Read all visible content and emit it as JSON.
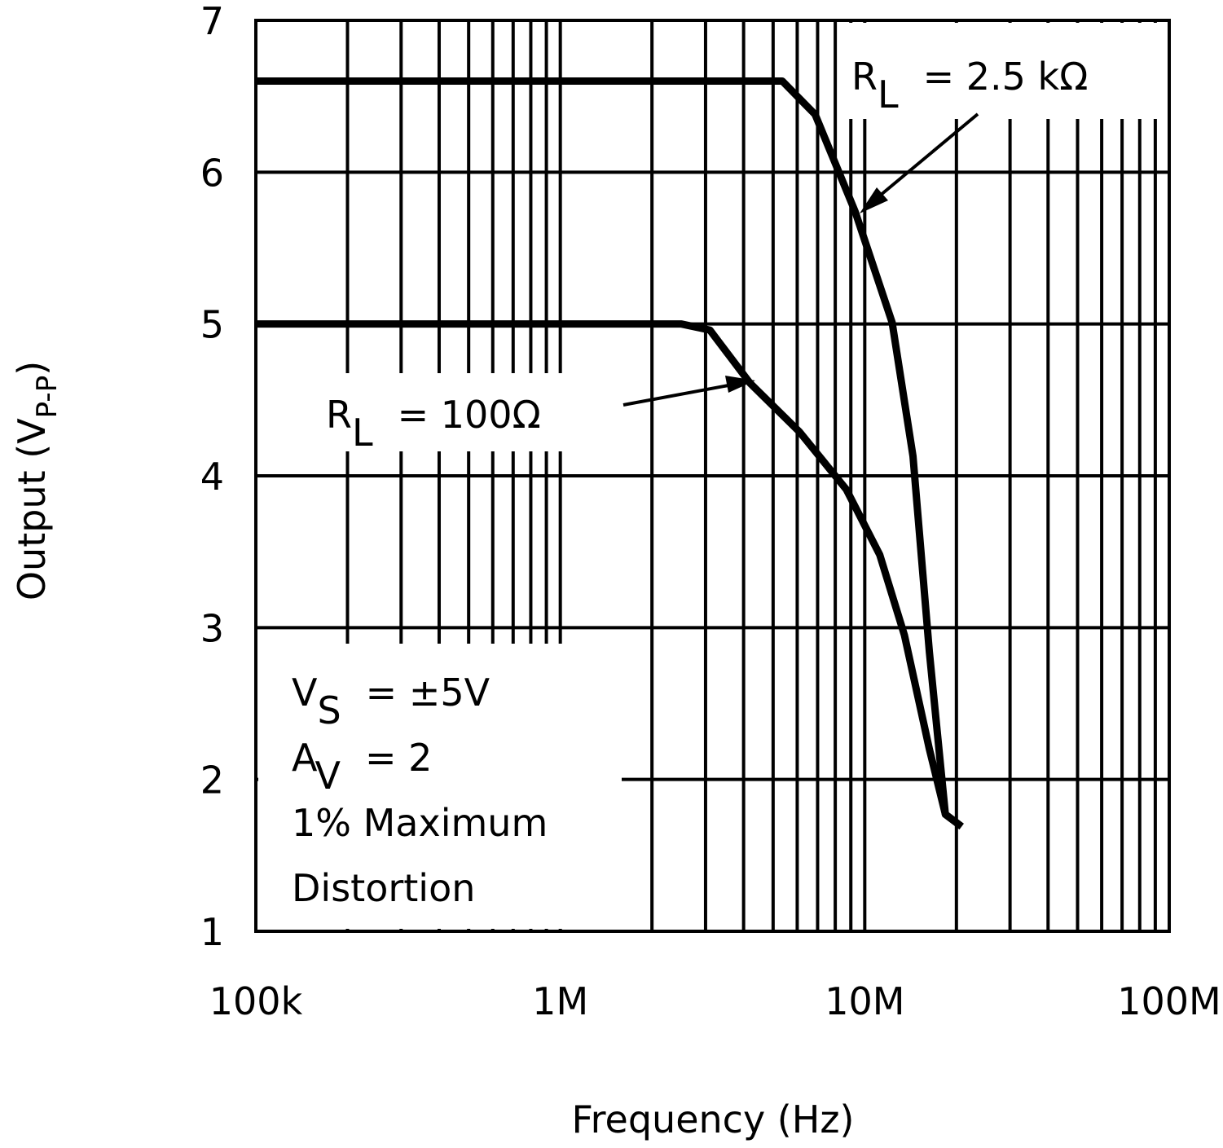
{
  "chart_data": {
    "type": "line",
    "x_label": "Frequency (Hz)",
    "y_label": {
      "main": "Output (V",
      "sub": "P-P",
      "end": ")"
    },
    "xlim": [
      100000,
      100000000
    ],
    "log_x": true,
    "xticks": [
      {
        "value": 100000,
        "label": "100k"
      },
      {
        "value": 1000000,
        "label": "1M"
      },
      {
        "value": 10000000,
        "label": "10M"
      },
      {
        "value": 100000000,
        "label": "100M"
      }
    ],
    "ylim": [
      1,
      7
    ],
    "yticks": [
      1,
      2,
      3,
      4,
      5,
      6,
      7
    ],
    "grid": true,
    "series": [
      {
        "name": {
          "main": "R",
          "sub": "L",
          "rest": "= 2.5 kΩ"
        },
        "color": "#000000",
        "x": [
          100000,
          5360000,
          6870000,
          9300000,
          12300000,
          14400000,
          16300000,
          18400000,
          20800000
        ],
        "values": [
          6.6,
          6.6,
          6.38,
          5.74,
          5.01,
          4.13,
          2.84,
          1.77,
          1.69
        ]
      },
      {
        "name": {
          "main": "R",
          "sub": "L",
          "rest": "= 100Ω"
        },
        "color": "#000000",
        "x": [
          100000,
          2500000,
          3100000,
          4200000,
          6100000,
          8700000,
          11200000,
          13500000,
          16300000,
          18400000,
          20800000
        ],
        "values": [
          5.0,
          5.0,
          4.96,
          4.61,
          4.29,
          3.91,
          3.48,
          2.95,
          2.2,
          1.77,
          1.69
        ]
      }
    ],
    "conditions": [
      {
        "main": "V",
        "sub": "S",
        "rest": "= ±5V"
      },
      {
        "main": "A",
        "sub": "V",
        "rest": "= 2"
      },
      {
        "main": "1% Maximum"
      },
      {
        "main": "Distortion"
      }
    ]
  }
}
